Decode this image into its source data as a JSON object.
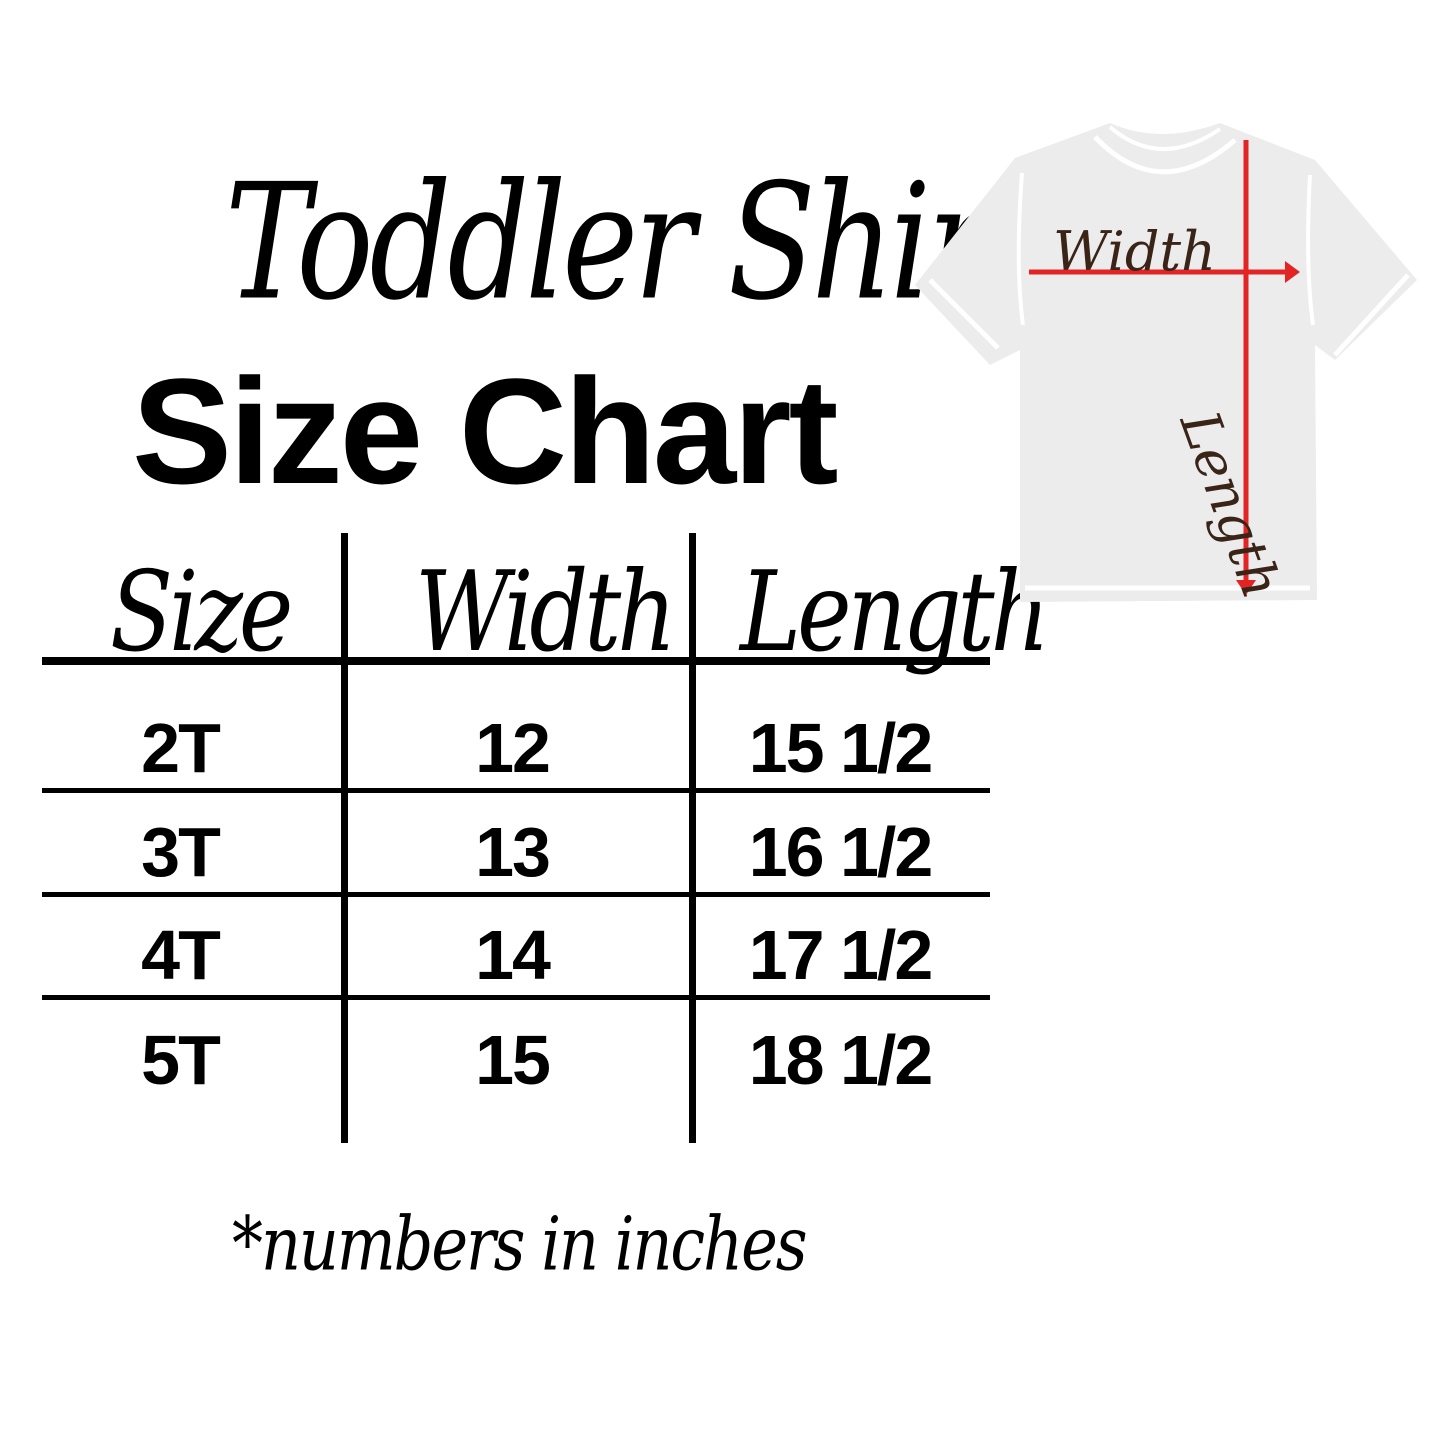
{
  "title": {
    "script": "Toddler Shirt",
    "main": "Size Chart"
  },
  "table": {
    "headers": [
      "Size",
      "Width",
      "Length"
    ],
    "rows": [
      [
        "2T",
        "12",
        "15 1/2"
      ],
      [
        "3T",
        "13",
        "16 1/2"
      ],
      [
        "4T",
        "14",
        "17 1/2"
      ],
      [
        "5T",
        "15",
        "18 1/2"
      ]
    ]
  },
  "footnote": "*numbers in inches",
  "diagram": {
    "width_label": "Width",
    "length_label": "Length",
    "arrow_color": "#e32424",
    "shirt_color": "#ececec"
  }
}
